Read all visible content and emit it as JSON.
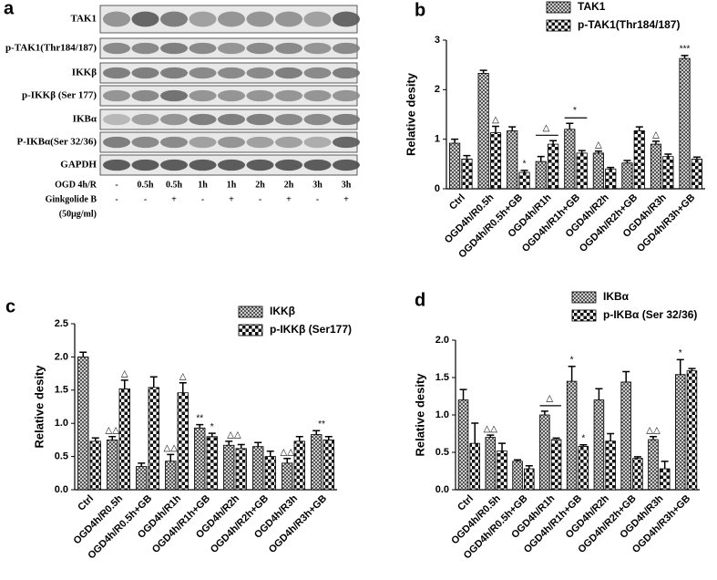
{
  "blot": {
    "panel": "a",
    "rows": [
      "TAK1",
      "p-TAK1(Thr184/187)",
      "IKKβ",
      "p-IKKβ (Ser 177)",
      "IKBα",
      "P-IKBα(Ser 32/36)",
      "GAPDH"
    ],
    "conditions": [
      {
        "label": "OGD 4h/R",
        "values": [
          "-",
          "0.5h",
          "0.5h",
          "1h",
          "1h",
          "2h",
          "2h",
          "3h",
          "3h"
        ]
      },
      {
        "label": "Ginkgolide B",
        "sublabel": "(50μg/ml)",
        "values": [
          "-",
          "-",
          "+",
          "-",
          "+",
          "-",
          "+",
          "-",
          "+"
        ]
      }
    ]
  },
  "chart_data": [
    {
      "type": "bar",
      "panel": "b",
      "y_label": "Relative desity",
      "categories": [
        "Ctrl",
        "OGD4h/R0.5h",
        "OGD4h/R0.5h+GB",
        "OGD4h/R1h",
        "OGD4h/R1h+GB",
        "OGD4h/R2h",
        "OGD4h/R2h+GB",
        "OGD4h/R3h",
        "OGD4h/R3h+GB"
      ],
      "series": [
        {
          "name": "TAK1",
          "color": "#555555",
          "values": [
            0.92,
            2.33,
            1.17,
            0.55,
            1.2,
            0.72,
            0.52,
            0.9,
            2.63
          ],
          "errors": [
            0.08,
            0.06,
            0.08,
            0.1,
            0.12,
            0.04,
            0.05,
            0.06,
            0.06
          ]
        },
        {
          "name": "p-TAK1(Thr184/187)",
          "color": "#111111",
          "values": [
            0.6,
            1.13,
            0.33,
            0.9,
            0.72,
            0.4,
            1.17,
            0.65,
            0.6
          ],
          "errors": [
            0.07,
            0.13,
            0.04,
            0.07,
            0.05,
            0.03,
            0.08,
            0.05,
            0.04
          ]
        }
      ],
      "annotations": [
        "△",
        "*",
        "△",
        "*",
        "△",
        "△",
        "***"
      ],
      "ylim": [
        0,
        3
      ],
      "yticks": [
        0,
        1,
        2,
        3
      ]
    },
    {
      "type": "bar",
      "panel": "c",
      "y_label": "Relative desity",
      "categories": [
        "Ctrl",
        "OGD4h/R0.5h",
        "OGD4h/R0.5h+GB",
        "OGD4h/R1h",
        "OGD4h/R1h+GB",
        "OGD4h/R2h",
        "OGD4h/R2h+GB",
        "OGD4h/R3h",
        "OGD4h/R3h+GB"
      ],
      "series": [
        {
          "name": "IKKβ",
          "color": "#555555",
          "values": [
            2.0,
            0.75,
            0.35,
            0.43,
            0.93,
            0.67,
            0.65,
            0.4,
            0.83
          ],
          "errors": [
            0.07,
            0.05,
            0.05,
            0.1,
            0.05,
            0.06,
            0.06,
            0.07,
            0.06
          ]
        },
        {
          "name": "p-IKKβ  (Ser177)",
          "color": "#111111",
          "values": [
            0.73,
            1.52,
            1.54,
            1.46,
            0.8,
            0.62,
            0.5,
            0.73,
            0.75
          ],
          "errors": [
            0.05,
            0.13,
            0.16,
            0.15,
            0.05,
            0.06,
            0.08,
            0.07,
            0.05
          ]
        }
      ],
      "annotations": [
        "△△",
        "△",
        "△",
        "△△",
        "**",
        "*",
        "△△",
        "△△",
        "**"
      ],
      "ylim": [
        0,
        2.5
      ],
      "yticks": [
        {
          "value": 0,
          "label": "0.0"
        },
        0.5,
        {
          "value": 1,
          "label": "1.0"
        },
        1.5,
        {
          "value": 2,
          "label": "2.0"
        },
        2.5
      ]
    },
    {
      "type": "bar",
      "panel": "d",
      "y_label": "Relative desity",
      "categories": [
        "Ctrl",
        "OGD4h/R0.5h",
        "OGD4h/R0.5h+GB",
        "OGD4h/R1h",
        "OGD4h/R1h+GB",
        "OGD4h/R2h",
        "OGD4h/R2h+GB",
        "OGD4h/R3h",
        "OGD4h/R3h+GB"
      ],
      "series": [
        {
          "name": "IKBα",
          "color": "#555555",
          "values": [
            1.2,
            0.7,
            0.38,
            1.0,
            1.45,
            1.2,
            1.44,
            0.67,
            1.54
          ],
          "errors": [
            0.14,
            0.03,
            0.02,
            0.05,
            0.2,
            0.15,
            0.14,
            0.04,
            0.2
          ]
        },
        {
          "name": "p-IKBα (Ser 32/36)",
          "color": "#111111",
          "values": [
            0.62,
            0.52,
            0.28,
            0.67,
            0.58,
            0.65,
            0.42,
            0.28,
            1.59
          ],
          "errors": [
            0.27,
            0.1,
            0.04,
            0.02,
            0.02,
            0.1,
            0.02,
            0.1,
            0.03
          ]
        }
      ],
      "annotations": [
        "△△",
        "△",
        "*",
        "*",
        "△△",
        "*"
      ],
      "ylim": [
        0,
        2
      ],
      "yticks": [
        {
          "value": 0,
          "label": "0.0"
        },
        0.5,
        {
          "value": 1,
          "label": "1.0"
        },
        1.5,
        {
          "value": 2,
          "label": "2.0"
        }
      ]
    }
  ]
}
